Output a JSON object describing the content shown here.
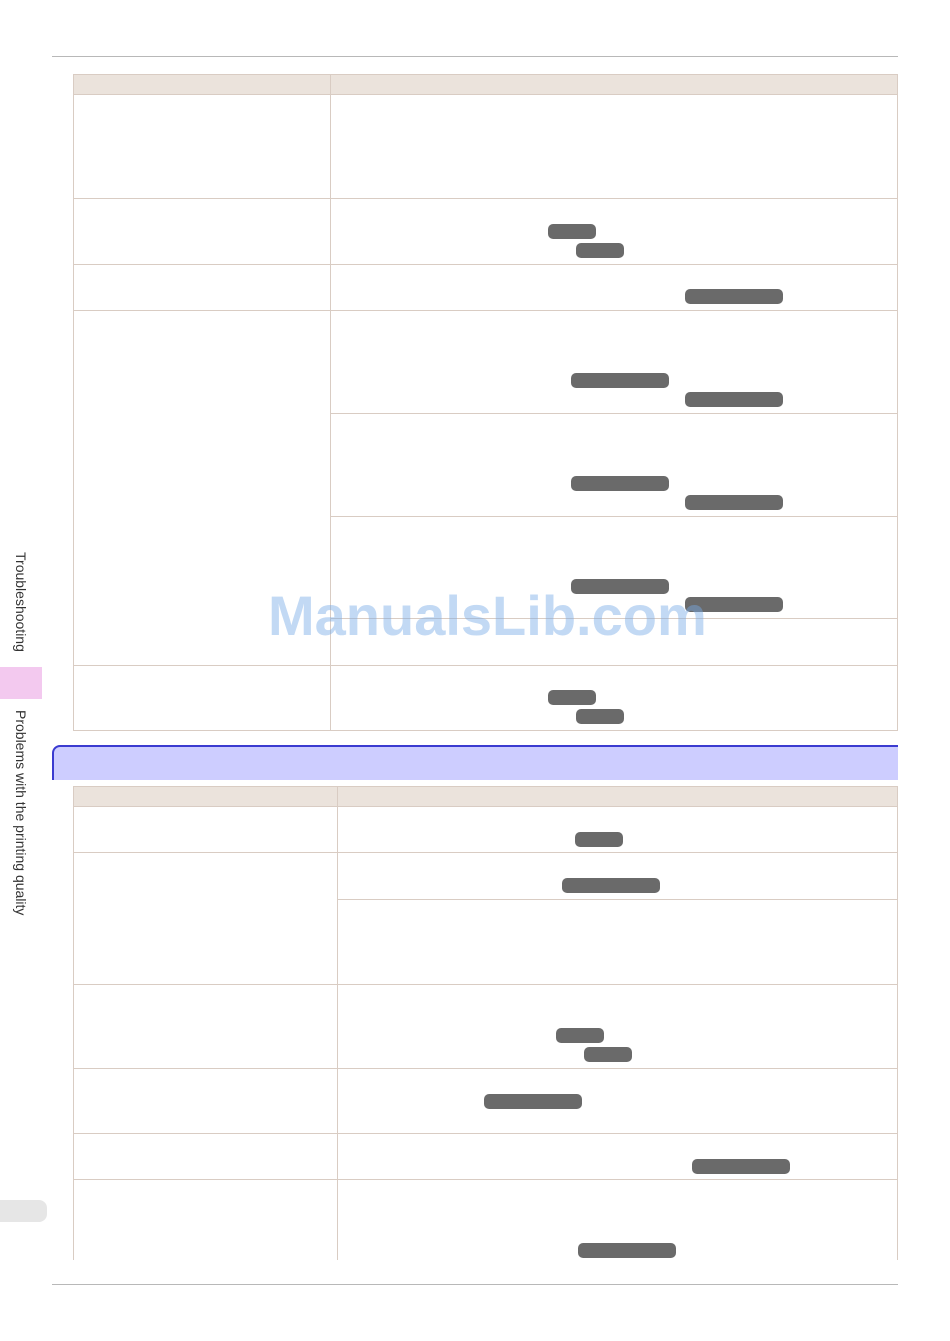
{
  "sidebar": {
    "section_label": "Troubleshooting",
    "subsection_label": "Problems with the printing quality"
  },
  "watermark": "ManualsLib.com",
  "colors": {
    "table_header_bg": "#ebe3dc",
    "section_bar_bg": "#cdcdff",
    "section_bar_border": "#3b3bd0",
    "side_tab_bg": "#f3c9ef",
    "reference_badge": "#6a6a6a"
  }
}
